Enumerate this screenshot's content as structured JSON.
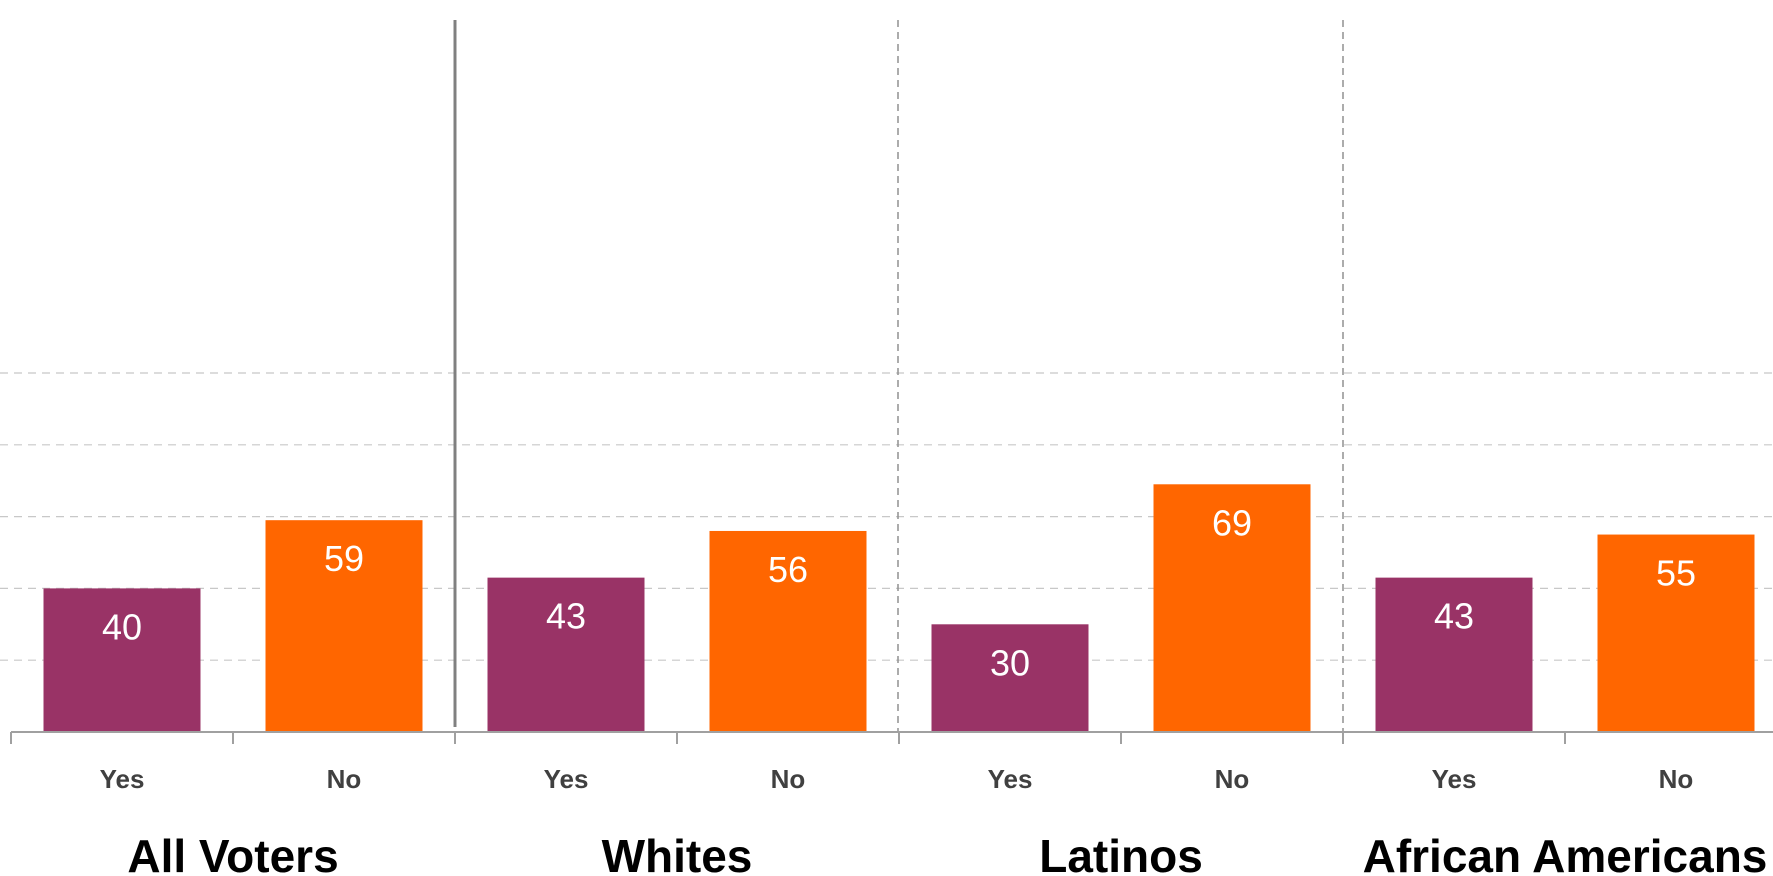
{
  "chart_data": {
    "type": "bar",
    "title": "",
    "xlabel": "",
    "ylabel": "",
    "ylim": [
      0,
      100
    ],
    "grid": true,
    "categories": [
      "Yes",
      "No",
      "Yes",
      "No",
      "Yes",
      "No",
      "Yes",
      "No"
    ],
    "groups": [
      {
        "name": "All Voters",
        "bars": [
          {
            "label": "Yes",
            "value": 40
          },
          {
            "label": "No",
            "value": 59
          }
        ]
      },
      {
        "name": "Whites",
        "bars": [
          {
            "label": "Yes",
            "value": 43
          },
          {
            "label": "No",
            "value": 56
          }
        ]
      },
      {
        "name": "Latinos",
        "bars": [
          {
            "label": "Yes",
            "value": 30
          },
          {
            "label": "No",
            "value": 69
          }
        ]
      },
      {
        "name": "African Americans",
        "bars": [
          {
            "label": "Yes",
            "value": 43
          },
          {
            "label": "No",
            "value": 55
          }
        ]
      }
    ],
    "colors": {
      "Yes": "#993366",
      "No": "#ff6600"
    }
  }
}
